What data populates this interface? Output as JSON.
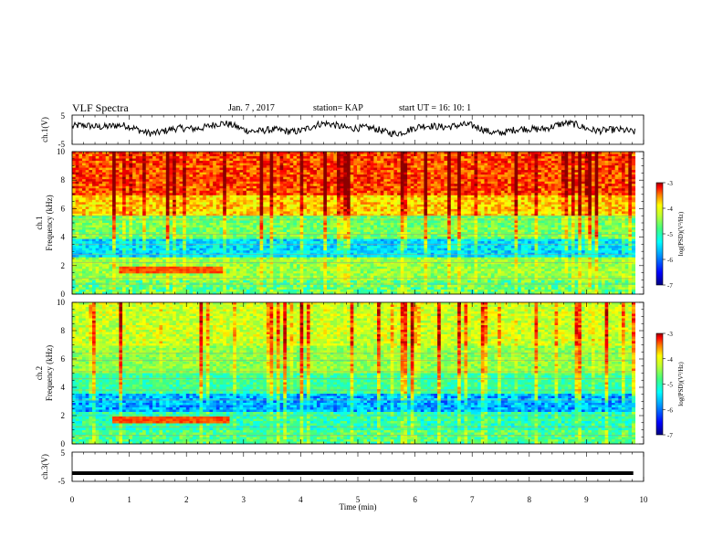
{
  "header": {
    "title": "VLF Spectra",
    "date": "Jan. 7 , 2017",
    "station": "station= KAP",
    "start_ut": "start UT =  16: 10: 1"
  },
  "colors": {
    "waveform": "#000000",
    "colormap": [
      "#000080",
      "#0000ff",
      "#00a0ff",
      "#00ffff",
      "#40ff80",
      "#b0ff30",
      "#ffff00",
      "#ff8000",
      "#ff0000",
      "#8b0000"
    ]
  },
  "chart_data": [
    {
      "type": "line",
      "panel": "ch1-waveform",
      "ylabel": "ch.1(V)",
      "ylim": [
        -5,
        5
      ],
      "y_ticks": [
        "5",
        "-5"
      ],
      "x_range_min": [
        0,
        10
      ]
    },
    {
      "type": "heatmap",
      "panel": "ch1-spectrogram",
      "ylabel_line1": "ch.1",
      "ylabel_line2": "Frequency (kHz)",
      "ylim": [
        0,
        10
      ],
      "y_ticks": [
        "0",
        "2",
        "4",
        "6",
        "8",
        "10"
      ],
      "colorbar": {
        "label": "log(PSD)(V²/Hz)",
        "range": [
          -7,
          -3
        ],
        "ticks": [
          "-3",
          "-4",
          "-5",
          "-6",
          "-7"
        ]
      },
      "features": {
        "enhanced_band_khz": [
          1.4,
          2.0
        ],
        "enhanced_band_time_min": [
          0.8,
          2.6
        ]
      }
    },
    {
      "type": "heatmap",
      "panel": "ch2-spectrogram",
      "ylabel_line1": "ch.2",
      "ylabel_line2": "Frequency (kHz)",
      "ylim": [
        0,
        10
      ],
      "y_ticks": [
        "0",
        "2",
        "4",
        "6",
        "8",
        "10"
      ],
      "colorbar": {
        "label": "log(PSD)(V²/Hz)",
        "range": [
          -7,
          -3
        ],
        "ticks": [
          "-3",
          "-4",
          "-5",
          "-6",
          "-7"
        ]
      },
      "features": {
        "enhanced_band_khz": [
          1.4,
          2.0
        ],
        "enhanced_band_time_min": [
          0.7,
          2.7
        ]
      }
    },
    {
      "type": "line",
      "panel": "ch3-waveform",
      "ylabel": "ch.3(V)",
      "ylim": [
        -5,
        5
      ],
      "y_ticks": [
        "5",
        "-5"
      ],
      "values_constant": -2.2
    }
  ],
  "x_axis": {
    "label": "Time (min)",
    "range": [
      0,
      10
    ],
    "ticks": [
      "0",
      "1",
      "2",
      "3",
      "4",
      "5",
      "6",
      "7",
      "8",
      "9",
      "10"
    ]
  }
}
